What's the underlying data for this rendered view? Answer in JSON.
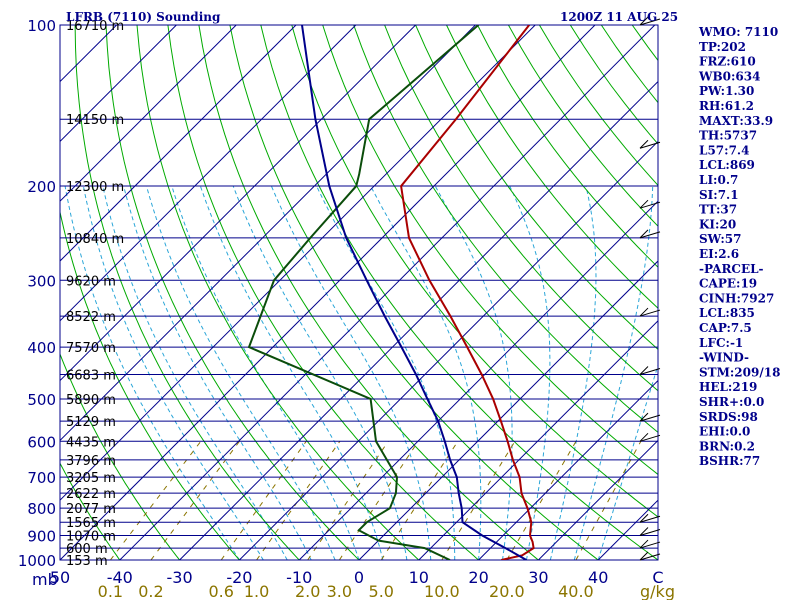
{
  "header": {
    "station_title": "LFRB (7110) Sounding",
    "valid_time": "1200Z 11 AUG 25"
  },
  "colors": {
    "isobar": "#00008b",
    "isotherm": "#00008b",
    "dry_adiabat": "#00aa00",
    "moist_adiabat": "#2ba6d8",
    "mixing_ratio": "#8b7500",
    "temperature": "#aa0000",
    "dewpoint": "#0b4d0b",
    "parcel": "#00008b",
    "wind": "#000000"
  },
  "stats": [
    "WMO: 7110",
    "TP:202",
    "FRZ:610",
    "WB0:634",
    "PW:1.30",
    "RH:61.2",
    "MAXT:33.9",
    "TH:5737",
    "L57:7.4",
    "LCL:869",
    "LI:0.7",
    "SI:7.1",
    "TT:37",
    "KI:20",
    "SW:57",
    "EI:2.6",
    "-PARCEL-",
    "CAPE:19",
    "CINH:7927",
    "LCL:835",
    "CAP:7.5",
    "LFC:-1",
    "-WIND-",
    "STM:209/18",
    "HEL:219",
    "SHR+:0.0",
    "SRDS:98",
    "EHI:0.0",
    "BRN:0.2",
    "BSHR:77"
  ],
  "chart_data": {
    "type": "skew-t log-p sounding",
    "y_axis": {
      "label": "mb",
      "scale": "log",
      "range": [
        1000,
        100
      ],
      "ticks": [
        100,
        200,
        300,
        400,
        500,
        600,
        700,
        800,
        900,
        1000
      ]
    },
    "x_axis": {
      "label": "",
      "units": "°C",
      "range": [
        -50,
        50
      ],
      "ticks": [
        -50,
        -40,
        -30,
        -20,
        -10,
        0,
        10,
        20,
        30,
        40,
        50
      ],
      "tick_labels": [
        "50",
        "-40",
        "-30",
        "-20",
        "-10",
        "0",
        "10",
        "20",
        "30",
        "40",
        "C"
      ]
    },
    "mixing_ratio_axis": {
      "units": "g/kg",
      "ticks": [
        0.1,
        0.2,
        0.6,
        1.0,
        2.0,
        3.0,
        5.0,
        10.0,
        20.0,
        40.0
      ],
      "tick_labels": [
        "0.1",
        "0.2",
        "0.6",
        "1.0",
        "2.0",
        "3.0",
        "5.0",
        "10.0",
        "20.0",
        "40.0"
      ],
      "unit_label": "g/kg"
    },
    "heights": [
      {
        "p": 100,
        "h": "16710 m"
      },
      {
        "p": 150,
        "h": "14150 m"
      },
      {
        "p": 200,
        "h": "12300 m"
      },
      {
        "p": 250,
        "h": "10840 m"
      },
      {
        "p": 300,
        "h": "9620 m"
      },
      {
        "p": 350,
        "h": "8522 m"
      },
      {
        "p": 400,
        "h": "7570 m"
      },
      {
        "p": 450,
        "h": "6683 m"
      },
      {
        "p": 500,
        "h": "5890 m"
      },
      {
        "p": 550,
        "h": "5129 m"
      },
      {
        "p": 600,
        "h": "4435 m"
      },
      {
        "p": 650,
        "h": "3796 m"
      },
      {
        "p": 700,
        "h": "3205 m"
      },
      {
        "p": 750,
        "h": "2622 m"
      },
      {
        "p": 800,
        "h": "2077 m"
      },
      {
        "p": 850,
        "h": "1565 m"
      },
      {
        "p": 900,
        "h": "1070 m"
      },
      {
        "p": 950,
        "h": "600 m"
      },
      {
        "p": 1000,
        "h": "153 m"
      }
    ],
    "series": [
      {
        "name": "temperature",
        "points": [
          [
            1000,
            23.8
          ],
          [
            980,
            26.5
          ],
          [
            950,
            27.2
          ],
          [
            925,
            26.0
          ],
          [
            900,
            24.5
          ],
          [
            850,
            22.5
          ],
          [
            800,
            19.5
          ],
          [
            750,
            16.0
          ],
          [
            700,
            13.0
          ],
          [
            650,
            9.0
          ],
          [
            600,
            5.0
          ],
          [
            550,
            0.5
          ],
          [
            500,
            -4.5
          ],
          [
            450,
            -10.5
          ],
          [
            400,
            -17.5
          ],
          [
            350,
            -25.5
          ],
          [
            300,
            -35.0
          ],
          [
            250,
            -45.5
          ],
          [
            200,
            -55.5
          ],
          [
            150,
            -57.5
          ],
          [
            100,
            -61.0
          ]
        ]
      },
      {
        "name": "dewpoint",
        "points": [
          [
            1000,
            15.2
          ],
          [
            950,
            9.0
          ],
          [
            920,
            0.0
          ],
          [
            880,
            -5.0
          ],
          [
            850,
            -5.0
          ],
          [
            800,
            -3.5
          ],
          [
            750,
            -5.0
          ],
          [
            700,
            -7.5
          ],
          [
            600,
            -17.0
          ],
          [
            500,
            -25.0
          ],
          [
            400,
            -54.0
          ],
          [
            300,
            -61.0
          ],
          [
            250,
            -62.0
          ],
          [
            200,
            -63.0
          ],
          [
            190,
            -64.5
          ],
          [
            150,
            -72.0
          ],
          [
            100,
            -69.5
          ]
        ]
      },
      {
        "name": "parcel",
        "points": [
          [
            1000,
            28.0
          ],
          [
            950,
            22.5
          ],
          [
            900,
            16.5
          ],
          [
            850,
            11.0
          ],
          [
            800,
            8.5
          ],
          [
            750,
            5.5
          ],
          [
            700,
            2.5
          ],
          [
            650,
            -1.5
          ],
          [
            600,
            -5.5
          ],
          [
            550,
            -10.0
          ],
          [
            500,
            -15.5
          ],
          [
            450,
            -21.5
          ],
          [
            400,
            -28.5
          ],
          [
            350,
            -36.5
          ],
          [
            300,
            -45.5
          ],
          [
            250,
            -56.0
          ],
          [
            200,
            -67.5
          ],
          [
            150,
            -81.0
          ],
          [
            100,
            -99.0
          ]
        ]
      }
    ],
    "wind_barbs": [
      {
        "p": 1000
      },
      {
        "p": 950
      },
      {
        "p": 900
      },
      {
        "p": 850
      },
      {
        "p": 600
      },
      {
        "p": 550
      },
      {
        "p": 450
      },
      {
        "p": 350
      },
      {
        "p": 250
      },
      {
        "p": 220
      },
      {
        "p": 170
      },
      {
        "p": 100
      }
    ],
    "grid": true
  }
}
